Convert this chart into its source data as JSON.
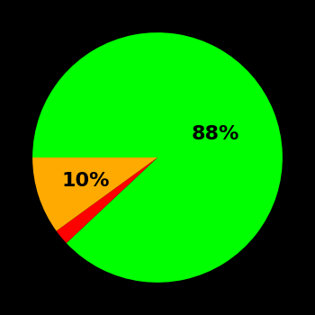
{
  "slices": [
    88,
    2,
    10
  ],
  "colors": [
    "#00ff00",
    "#ff0000",
    "#ffaa00"
  ],
  "labels": [
    "88%",
    "",
    "10%"
  ],
  "background_color": "#000000",
  "label_fontsize": 16,
  "label_color": "#000000",
  "startangle": 180,
  "figsize": [
    3.5,
    3.5
  ],
  "dpi": 100
}
